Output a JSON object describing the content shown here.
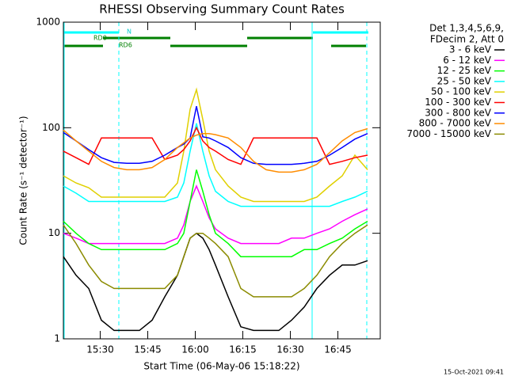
{
  "chart_data": {
    "type": "line",
    "title": "RHESSI Observing Summary Count Rates",
    "x_label": "Start Time (06-May-06 15:18:22)",
    "y_label": "Count Rate (s⁻¹ detector⁻¹)",
    "legend_header": [
      "Det 1,3,4,5,6,9,",
      "FDecim 2, Att 0"
    ],
    "flags": [
      "N",
      "RD0",
      "RD6"
    ],
    "footer": "15-Oct-2021 09:41",
    "ylog": true,
    "ylim": [
      1,
      1000
    ],
    "yticks": [
      1,
      10,
      100,
      1000
    ],
    "xlim": [
      0,
      100
    ],
    "xticks": [
      {
        "value": 11.63,
        "label": "15:30"
      },
      {
        "value": 26.63,
        "label": "15:45"
      },
      {
        "value": 41.63,
        "label": "16:00"
      },
      {
        "value": 56.63,
        "label": "16:15"
      },
      {
        "value": 71.63,
        "label": "16:30"
      },
      {
        "value": 86.63,
        "label": "16:45"
      }
    ],
    "x": [
      0,
      4,
      8,
      12,
      16,
      20,
      24,
      28,
      32,
      36,
      38,
      40,
      42,
      44,
      46,
      48,
      52,
      56,
      60,
      64,
      68,
      72,
      76,
      80,
      84,
      88,
      92,
      96
    ],
    "series": [
      {
        "name": "3 - 6 keV",
        "color": "#000000",
        "values": [
          6,
          4,
          3,
          1.5,
          1.2,
          1.2,
          1.2,
          1.5,
          2.5,
          4,
          6,
          9,
          10,
          9,
          7,
          5,
          2.5,
          1.3,
          1.2,
          1.2,
          1.2,
          1.5,
          2,
          3,
          4,
          5,
          5,
          5.5
        ]
      },
      {
        "name": "6 - 12 keV",
        "color": "#ff00ff",
        "values": [
          10,
          9,
          8,
          8,
          8,
          8,
          8,
          8,
          8,
          9,
          12,
          20,
          28,
          20,
          14,
          11,
          9,
          8,
          8,
          8,
          8,
          9,
          9,
          10,
          11,
          13,
          15,
          17
        ]
      },
      {
        "name": "12 - 25 keV",
        "color": "#00ff00",
        "values": [
          13,
          10,
          8,
          7,
          7,
          7,
          7,
          7,
          7,
          8,
          10,
          20,
          40,
          25,
          15,
          10,
          8,
          6,
          6,
          6,
          6,
          6,
          7,
          7,
          8,
          9,
          11,
          13
        ]
      },
      {
        "name": "25 - 50 keV",
        "color": "#00ffff",
        "values": [
          28,
          24,
          20,
          20,
          20,
          20,
          20,
          20,
          20,
          22,
          30,
          60,
          110,
          60,
          35,
          25,
          20,
          18,
          18,
          18,
          18,
          18,
          18,
          18,
          18,
          20,
          22,
          25
        ]
      },
      {
        "name": "50 - 100 keV",
        "color": "#e0d000",
        "values": [
          35,
          30,
          27,
          22,
          22,
          22,
          22,
          22,
          22,
          30,
          60,
          150,
          230,
          120,
          60,
          40,
          28,
          22,
          20,
          20,
          20,
          20,
          20,
          22,
          28,
          35,
          55,
          40
        ]
      },
      {
        "name": "100 - 300 keV",
        "color": "#ff0000",
        "values": [
          60,
          52,
          45,
          80,
          80,
          80,
          80,
          80,
          50,
          55,
          62,
          75,
          100,
          75,
          65,
          60,
          50,
          45,
          80,
          80,
          80,
          80,
          80,
          80,
          45,
          48,
          52,
          55
        ]
      },
      {
        "name": "300 - 800 keV",
        "color": "#0000ff",
        "values": [
          90,
          75,
          62,
          52,
          47,
          46,
          46,
          48,
          55,
          65,
          70,
          80,
          160,
          82,
          80,
          75,
          65,
          52,
          46,
          45,
          45,
          45,
          46,
          48,
          55,
          65,
          78,
          88
        ]
      },
      {
        "name": "800 - 7000 keV",
        "color": "#ff8c00",
        "values": [
          95,
          75,
          60,
          48,
          42,
          40,
          40,
          42,
          50,
          65,
          72,
          80,
          85,
          88,
          88,
          86,
          80,
          65,
          48,
          40,
          38,
          38,
          40,
          45,
          58,
          75,
          90,
          98
        ]
      },
      {
        "name": "7000 - 15000 keV",
        "color": "#8b8b00",
        "values": [
          12,
          8,
          5,
          3.5,
          3,
          3,
          3,
          3,
          3,
          4,
          6,
          9,
          10,
          10,
          9,
          8,
          6,
          3,
          2.5,
          2.5,
          2.5,
          2.5,
          3,
          4,
          6,
          8,
          10,
          12
        ]
      }
    ]
  }
}
